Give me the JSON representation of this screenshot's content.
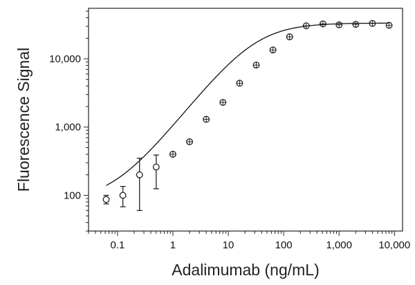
{
  "chart_data": {
    "type": "scatter",
    "xlabel": "Adalimumab (ng/mL)",
    "ylabel": "Fluorescence Signal",
    "x_scale": "log",
    "y_scale": "log",
    "xlim": [
      0.03,
      14000
    ],
    "ylim": [
      30,
      55000
    ],
    "grid": false,
    "x_ticks": [
      {
        "value": 0.1,
        "label": "0.1"
      },
      {
        "value": 1,
        "label": "1"
      },
      {
        "value": 10,
        "label": "10"
      },
      {
        "value": 100,
        "label": "100"
      },
      {
        "value": 1000,
        "label": "1,000"
      },
      {
        "value": 10000,
        "label": "10,000"
      }
    ],
    "y_ticks": [
      {
        "value": 100,
        "label": "100"
      },
      {
        "value": 1000,
        "label": "1,000"
      },
      {
        "value": 10000,
        "label": "10,000"
      }
    ],
    "series": [
      {
        "points": [
          {
            "x": 0.0625,
            "y": 87,
            "err_low": 75,
            "err_high": 100
          },
          {
            "x": 0.125,
            "y": 100,
            "err_low": 68,
            "err_high": 135
          },
          {
            "x": 0.25,
            "y": 200,
            "err_low": 60,
            "err_high": 350
          },
          {
            "x": 0.5,
            "y": 260,
            "err_low": 125,
            "err_high": 390
          },
          {
            "x": 1,
            "y": 400
          },
          {
            "x": 2,
            "y": 610
          },
          {
            "x": 4,
            "y": 1300
          },
          {
            "x": 8,
            "y": 2300
          },
          {
            "x": 16,
            "y": 4400
          },
          {
            "x": 32,
            "y": 8100
          },
          {
            "x": 64,
            "y": 13500
          },
          {
            "x": 128,
            "y": 21000
          },
          {
            "x": 256,
            "y": 30500
          },
          {
            "x": 512,
            "y": 32500
          },
          {
            "x": 1000,
            "y": 31500
          },
          {
            "x": 2000,
            "y": 32000
          },
          {
            "x": 4000,
            "y": 33000
          },
          {
            "x": 8000,
            "y": 31000
          }
        ]
      }
    ],
    "fit_curve": {
      "model": "4PL",
      "bottom": 82,
      "top": 33500,
      "ec50": 30,
      "hill": 1.03
    }
  }
}
